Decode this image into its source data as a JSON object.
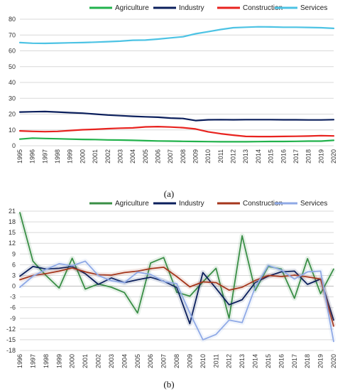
{
  "chart_data": [
    {
      "type": "line",
      "panel_label": "(a)",
      "ylim": [
        0,
        80
      ],
      "yticks": [
        0,
        10,
        20,
        30,
        40,
        50,
        60,
        70,
        80
      ],
      "grid": "horizontal",
      "legend": "top",
      "x": [
        "1995",
        "1996",
        "1997",
        "1998",
        "1999",
        "2000",
        "2001",
        "2002",
        "2003",
        "2004",
        "2005",
        "2006",
        "2007",
        "2008",
        "2009",
        "2010",
        "2011",
        "2012",
        "2013",
        "2014",
        "2015",
        "2016",
        "2017",
        "2018",
        "2019",
        "2020"
      ],
      "series": [
        {
          "name": "Agriculture",
          "color": "#22b24c",
          "values": [
            4.2,
            4.8,
            4.6,
            4.4,
            4.2,
            4.0,
            3.9,
            3.7,
            3.6,
            3.4,
            3.2,
            3.0,
            2.9,
            2.8,
            2.7,
            2.6,
            2.5,
            2.5,
            2.5,
            2.6,
            2.7,
            2.7,
            2.8,
            2.9,
            2.9,
            3.4
          ]
        },
        {
          "name": "Industry",
          "color": "#0b1f5c",
          "values": [
            21.3,
            21.5,
            21.6,
            21.3,
            20.9,
            20.6,
            20.0,
            19.4,
            19.0,
            18.6,
            18.3,
            18.0,
            17.5,
            17.2,
            15.9,
            16.4,
            16.5,
            16.4,
            16.5,
            16.5,
            16.5,
            16.4,
            16.4,
            16.3,
            16.3,
            16.5
          ]
        },
        {
          "name": "Construction",
          "color": "#e8231f",
          "values": [
            9.4,
            9.1,
            8.9,
            9.1,
            9.6,
            10.1,
            10.4,
            10.8,
            11.1,
            11.3,
            11.9,
            12.1,
            11.8,
            11.4,
            10.6,
            8.8,
            7.6,
            6.7,
            5.9,
            5.8,
            5.8,
            5.9,
            6.0,
            6.1,
            6.4,
            6.2
          ]
        },
        {
          "name": "Services",
          "color": "#4dc3e4",
          "values": [
            65.2,
            64.8,
            64.7,
            64.9,
            65.1,
            65.2,
            65.5,
            65.8,
            66.1,
            66.7,
            66.8,
            67.4,
            68.2,
            68.9,
            70.8,
            72.1,
            73.5,
            74.6,
            74.9,
            75.2,
            75.1,
            74.9,
            74.9,
            74.8,
            74.6,
            74.2
          ]
        }
      ]
    },
    {
      "type": "line",
      "panel_label": "(b)",
      "ylim": [
        -18,
        21
      ],
      "yticks": [
        21,
        18,
        15,
        12,
        9,
        6,
        3,
        0,
        -3,
        -6,
        -9,
        -12,
        -15,
        -18
      ],
      "grid": "horizontal",
      "legend": "top",
      "x": [
        "1996",
        "1997",
        "1998",
        "1999",
        "2000",
        "2001",
        "2002",
        "2003",
        "2004",
        "2005",
        "2006",
        "2007",
        "2008",
        "2009",
        "2010",
        "2011",
        "2012",
        "2013",
        "2014",
        "2015",
        "2016",
        "2017",
        "2018",
        "2019",
        "2020"
      ],
      "series": [
        {
          "name": "Agriculture",
          "color": "#3a8f46",
          "values": [
            20.6,
            7.0,
            3.0,
            -0.5,
            7.8,
            -0.8,
            0.6,
            -0.3,
            -1.8,
            -7.5,
            6.5,
            8.0,
            -1.7,
            -2.8,
            1.2,
            5.0,
            -9.0,
            14.1,
            -1.2,
            5.5,
            4.8,
            -3.4,
            7.7,
            -2.1,
            4.8
          ]
        },
        {
          "name": "Industry",
          "color": "#0b1f5c",
          "values": [
            2.8,
            5.5,
            4.8,
            5.0,
            5.5,
            3.5,
            0.5,
            2.3,
            1.0,
            1.8,
            2.5,
            1.4,
            -0.4,
            -10.5,
            3.8,
            -0.6,
            -5.2,
            -3.8,
            1.0,
            2.8,
            4.0,
            4.2,
            0.5,
            2.0,
            -9.5
          ]
        },
        {
          "name": "Construction",
          "color": "#a5361c",
          "values": [
            1.8,
            3.0,
            3.5,
            4.2,
            5.1,
            4.0,
            3.2,
            3.1,
            3.8,
            4.2,
            4.9,
            5.3,
            2.7,
            -0.2,
            1.2,
            1.0,
            -1.1,
            -0.3,
            1.6,
            3.0,
            2.7,
            3.1,
            2.6,
            2.0,
            -11.2
          ]
        },
        {
          "name": "Services",
          "color": "#8fa9e6",
          "values": [
            -0.3,
            2.8,
            4.7,
            6.3,
            5.7,
            7.0,
            3.0,
            1.5,
            1.0,
            3.9,
            3.3,
            1.3,
            0.7,
            -7.5,
            -15.0,
            -13.5,
            -9.5,
            -10.2,
            -0.3,
            5.8,
            4.5,
            2.0,
            4.0,
            4.2,
            -15.5
          ]
        }
      ]
    }
  ]
}
